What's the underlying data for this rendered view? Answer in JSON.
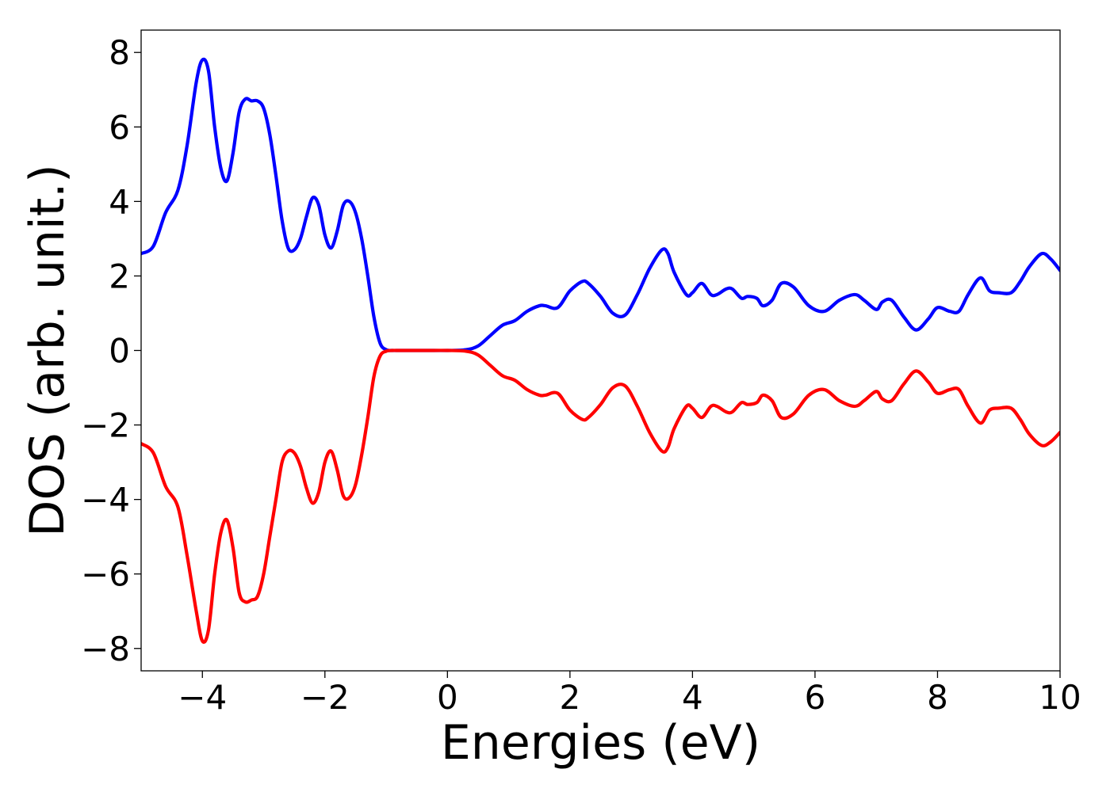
{
  "chart_data": {
    "type": "line",
    "title": "",
    "xlabel": "Energies (eV)",
    "ylabel": "DOS (arb. unit.)",
    "xlim": [
      -5,
      10
    ],
    "ylim": [
      -8.6,
      8.6
    ],
    "xticks": [
      -4,
      -2,
      0,
      2,
      4,
      6,
      8,
      10
    ],
    "xtick_labels": [
      "−4",
      "−2",
      "0",
      "2",
      "4",
      "6",
      "8",
      "10"
    ],
    "yticks": [
      -8,
      -6,
      -4,
      -2,
      0,
      2,
      4,
      6,
      8
    ],
    "ytick_labels": [
      "−8",
      "−6",
      "−4",
      "−2",
      "0",
      "2",
      "4",
      "6",
      "8"
    ],
    "grid": false,
    "legend": "none",
    "series": [
      {
        "color": "#0000ff",
        "x": [
          -5.0,
          -4.8,
          -4.6,
          -4.4,
          -4.25,
          -4.1,
          -4.0,
          -3.9,
          -3.8,
          -3.7,
          -3.6,
          -3.5,
          -3.4,
          -3.3,
          -3.2,
          -3.1,
          -3.0,
          -2.9,
          -2.8,
          -2.7,
          -2.6,
          -2.5,
          -2.4,
          -2.3,
          -2.2,
          -2.1,
          -2.0,
          -1.9,
          -1.8,
          -1.7,
          -1.6,
          -1.5,
          -1.4,
          -1.3,
          -1.2,
          -1.1,
          -1.0,
          -0.9,
          -0.8,
          -0.7,
          -0.6,
          -0.5,
          -0.4,
          -0.3,
          0.0,
          0.3,
          0.5,
          0.7,
          0.9,
          1.1,
          1.3,
          1.5,
          1.6,
          1.8,
          2.0,
          2.2,
          2.3,
          2.5,
          2.7,
          2.9,
          3.1,
          3.3,
          3.5,
          3.6,
          3.7,
          3.9,
          4.0,
          4.15,
          4.3,
          4.4,
          4.55,
          4.65,
          4.8,
          4.9,
          5.05,
          5.15,
          5.3,
          5.45,
          5.65,
          5.9,
          6.15,
          6.4,
          6.65,
          6.8,
          7.0,
          7.1,
          7.25,
          7.45,
          7.65,
          7.85,
          8.0,
          8.2,
          8.35,
          8.5,
          8.7,
          8.85,
          9.0,
          9.2,
          9.35,
          9.5,
          9.7,
          9.85,
          10.0
        ],
        "y": [
          2.6,
          2.8,
          3.7,
          4.3,
          5.5,
          7.2,
          7.8,
          7.5,
          6.0,
          4.9,
          4.55,
          5.3,
          6.4,
          6.75,
          6.7,
          6.7,
          6.5,
          5.8,
          4.7,
          3.5,
          2.75,
          2.7,
          3.0,
          3.6,
          4.1,
          3.9,
          3.1,
          2.75,
          3.2,
          3.9,
          4.0,
          3.7,
          3.0,
          2.0,
          0.9,
          0.2,
          0.02,
          0.0,
          0.0,
          0.0,
          0.0,
          0.0,
          0.0,
          0.0,
          0.0,
          0.02,
          0.12,
          0.4,
          0.68,
          0.8,
          1.05,
          1.2,
          1.2,
          1.15,
          1.6,
          1.85,
          1.8,
          1.45,
          1.0,
          0.95,
          1.5,
          2.2,
          2.7,
          2.6,
          2.1,
          1.5,
          1.55,
          1.8,
          1.5,
          1.5,
          1.65,
          1.65,
          1.4,
          1.45,
          1.4,
          1.2,
          1.35,
          1.8,
          1.7,
          1.2,
          1.05,
          1.35,
          1.5,
          1.35,
          1.1,
          1.3,
          1.35,
          0.9,
          0.55,
          0.85,
          1.15,
          1.05,
          1.05,
          1.5,
          1.95,
          1.6,
          1.55,
          1.55,
          1.85,
          2.25,
          2.6,
          2.45,
          2.15
        ]
      },
      {
        "color": "#ff0000",
        "x": [
          -5.0,
          -4.8,
          -4.6,
          -4.4,
          -4.25,
          -4.1,
          -4.0,
          -3.9,
          -3.8,
          -3.7,
          -3.6,
          -3.5,
          -3.4,
          -3.3,
          -3.2,
          -3.1,
          -3.0,
          -2.9,
          -2.8,
          -2.7,
          -2.6,
          -2.5,
          -2.4,
          -2.3,
          -2.2,
          -2.1,
          -2.0,
          -1.9,
          -1.8,
          -1.7,
          -1.6,
          -1.5,
          -1.4,
          -1.3,
          -1.2,
          -1.1,
          -1.0,
          -0.9,
          -0.8,
          -0.7,
          -0.6,
          -0.5,
          -0.4,
          -0.3,
          0.0,
          0.3,
          0.5,
          0.7,
          0.9,
          1.1,
          1.3,
          1.5,
          1.6,
          1.8,
          2.0,
          2.2,
          2.3,
          2.5,
          2.7,
          2.9,
          3.1,
          3.3,
          3.5,
          3.6,
          3.7,
          3.9,
          4.0,
          4.15,
          4.3,
          4.4,
          4.55,
          4.65,
          4.8,
          4.9,
          5.05,
          5.15,
          5.3,
          5.45,
          5.65,
          5.9,
          6.15,
          6.4,
          6.65,
          6.8,
          7.0,
          7.1,
          7.25,
          7.45,
          7.65,
          7.85,
          8.0,
          8.2,
          8.35,
          8.5,
          8.7,
          8.85,
          9.0,
          9.2,
          9.35,
          9.5,
          9.7,
          9.85,
          10.0
        ],
        "y": [
          -2.5,
          -2.75,
          -3.65,
          -4.2,
          -5.5,
          -7.0,
          -7.8,
          -7.5,
          -6.0,
          -4.9,
          -4.55,
          -5.3,
          -6.5,
          -6.75,
          -6.7,
          -6.6,
          -6.0,
          -5.0,
          -4.0,
          -3.0,
          -2.7,
          -2.75,
          -3.1,
          -3.7,
          -4.1,
          -3.8,
          -3.0,
          -2.7,
          -3.2,
          -3.9,
          -3.95,
          -3.6,
          -2.8,
          -1.8,
          -0.7,
          -0.15,
          -0.02,
          0.0,
          0.0,
          0.0,
          0.0,
          0.0,
          0.0,
          0.0,
          0.0,
          -0.02,
          -0.12,
          -0.4,
          -0.68,
          -0.8,
          -1.05,
          -1.2,
          -1.2,
          -1.15,
          -1.6,
          -1.85,
          -1.8,
          -1.45,
          -1.0,
          -0.95,
          -1.5,
          -2.2,
          -2.7,
          -2.6,
          -2.1,
          -1.5,
          -1.55,
          -1.8,
          -1.5,
          -1.5,
          -1.65,
          -1.65,
          -1.4,
          -1.45,
          -1.4,
          -1.2,
          -1.35,
          -1.8,
          -1.7,
          -1.2,
          -1.05,
          -1.35,
          -1.5,
          -1.35,
          -1.1,
          -1.3,
          -1.35,
          -0.9,
          -0.55,
          -0.85,
          -1.15,
          -1.05,
          -1.05,
          -1.5,
          -1.95,
          -1.6,
          -1.55,
          -1.55,
          -1.85,
          -2.25,
          -2.55,
          -2.45,
          -2.2
        ]
      }
    ]
  }
}
